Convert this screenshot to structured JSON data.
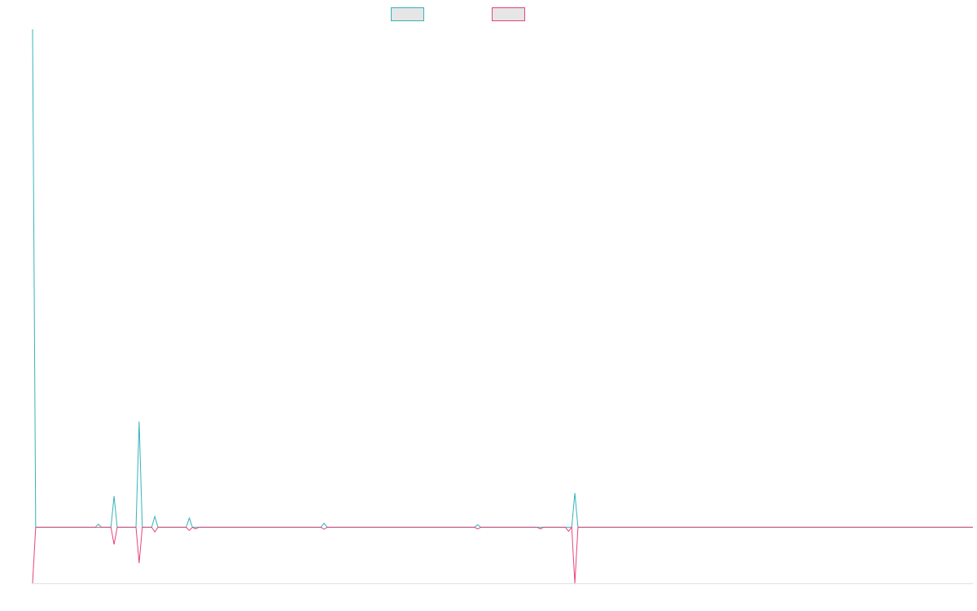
{
  "chart_data": {
    "type": "line",
    "title": "",
    "xlabel": "",
    "ylabel": "",
    "legend_placement": "top-center",
    "grid": false,
    "x": [
      0,
      1,
      2,
      3,
      4,
      5,
      6,
      7,
      8,
      9,
      10,
      11,
      12,
      13,
      14,
      15,
      16,
      17,
      18,
      19,
      20,
      21,
      22,
      23,
      24,
      25,
      26,
      27,
      28,
      29,
      30,
      31,
      32,
      33,
      34,
      35,
      36,
      37,
      38,
      39,
      40,
      41,
      42,
      43,
      44,
      45,
      46,
      47,
      48,
      49,
      50,
      51,
      52,
      53,
      54,
      55,
      56,
      57,
      58,
      59,
      60,
      61,
      62,
      63,
      64,
      65,
      66,
      67,
      68,
      69,
      70,
      71,
      72,
      73,
      74,
      75,
      76,
      77,
      78,
      79,
      80,
      81,
      82,
      83,
      84,
      85,
      86,
      87,
      88,
      89,
      90,
      91,
      92,
      93,
      94,
      95,
      96,
      97,
      98,
      99,
      100,
      101,
      102,
      103,
      104,
      105,
      106,
      107,
      108,
      109,
      110,
      111,
      112,
      113,
      114,
      115,
      116,
      117,
      118,
      119,
      120,
      121,
      122,
      123,
      124,
      125,
      126,
      127,
      128,
      129,
      130,
      131,
      132,
      133,
      134,
      135,
      136,
      137,
      138,
      139,
      140,
      141,
      142,
      143,
      144,
      145,
      146,
      147,
      148,
      149,
      150,
      151,
      152,
      153,
      154,
      155,
      156,
      157,
      158,
      159,
      160,
      161,
      162,
      163,
      164,
      165,
      166,
      167,
      168,
      169,
      170,
      171,
      172,
      173,
      174,
      175,
      176,
      177,
      178,
      179,
      180,
      181,
      182,
      183,
      184,
      185,
      186,
      187,
      188,
      189,
      190,
      191,
      192,
      193,
      194,
      195,
      196,
      197,
      198,
      199,
      200,
      201,
      202,
      203,
      204,
      205,
      206,
      207,
      208,
      209,
      210,
      211,
      212,
      213,
      214,
      215,
      216,
      217,
      218,
      219,
      220,
      221,
      222,
      223,
      224,
      225,
      226,
      227,
      228,
      229,
      230,
      231,
      232,
      233,
      234,
      235,
      236,
      237,
      238,
      239,
      240,
      241,
      242,
      243,
      244,
      245,
      246,
      247,
      248,
      249,
      250,
      251,
      252,
      253,
      254,
      255,
      256,
      257,
      258,
      259,
      260,
      261,
      262,
      263,
      264,
      265,
      266,
      267,
      268,
      269,
      270,
      271,
      272,
      273,
      274,
      275,
      276,
      277,
      278,
      279,
      280,
      281,
      282,
      283,
      284,
      285,
      286,
      287,
      288,
      289,
      290,
      291,
      292,
      293,
      294,
      295,
      296,
      297,
      298,
      299,
      300
    ],
    "ylim": [
      -18,
      160
    ],
    "series": [
      {
        "color": "#36b3b9",
        "points": [
          [
            0,
            160
          ],
          [
            1,
            0
          ],
          [
            20,
            0
          ],
          [
            21,
            1
          ],
          [
            22,
            0
          ],
          [
            25,
            0
          ],
          [
            26,
            10
          ],
          [
            27,
            0
          ],
          [
            30,
            0
          ],
          [
            31,
            0
          ],
          [
            33,
            0
          ],
          [
            34,
            34
          ],
          [
            35,
            0
          ],
          [
            38,
            0
          ],
          [
            39,
            3.5
          ],
          [
            40,
            0
          ],
          [
            49,
            0
          ],
          [
            50,
            3
          ],
          [
            51,
            0
          ],
          [
            52,
            0
          ],
          [
            53,
            0
          ],
          [
            74,
            0
          ],
          [
            75,
            0
          ],
          [
            76,
            0
          ],
          [
            92,
            0
          ],
          [
            93,
            1.3
          ],
          [
            94,
            0
          ],
          [
            114,
            0
          ],
          [
            115,
            0
          ],
          [
            116,
            0
          ],
          [
            141,
            0
          ],
          [
            142,
            0.8
          ],
          [
            143,
            0
          ],
          [
            161,
            0
          ],
          [
            162,
            0
          ],
          [
            163,
            0
          ],
          [
            170,
            0
          ],
          [
            171,
            0
          ],
          [
            172,
            0
          ],
          [
            173,
            11
          ],
          [
            174,
            0
          ],
          [
            300,
            0
          ]
        ]
      },
      {
        "color": "#e8437a",
        "points": [
          [
            0,
            -18
          ],
          [
            1,
            0
          ],
          [
            20,
            0
          ],
          [
            21,
            0
          ],
          [
            22,
            0
          ],
          [
            25,
            0
          ],
          [
            26,
            -5.5
          ],
          [
            27,
            0
          ],
          [
            30,
            0
          ],
          [
            31,
            0
          ],
          [
            33,
            0
          ],
          [
            34,
            -11.5
          ],
          [
            35,
            0
          ],
          [
            38,
            0
          ],
          [
            39,
            -1.5
          ],
          [
            40,
            0
          ],
          [
            49,
            0
          ],
          [
            50,
            -1
          ],
          [
            51,
            0
          ],
          [
            52,
            -0.5
          ],
          [
            53,
            0
          ],
          [
            74,
            0
          ],
          [
            75,
            0
          ],
          [
            76,
            0
          ],
          [
            92,
            0
          ],
          [
            93,
            -0.6
          ],
          [
            94,
            0
          ],
          [
            114,
            0
          ],
          [
            115,
            0
          ],
          [
            116,
            0
          ],
          [
            141,
            0
          ],
          [
            142,
            -0.5
          ],
          [
            143,
            0
          ],
          [
            161,
            0
          ],
          [
            162,
            -0.5
          ],
          [
            163,
            0
          ],
          [
            170,
            0
          ],
          [
            171,
            -1.3
          ],
          [
            172,
            0
          ],
          [
            173,
            -18
          ],
          [
            174,
            0
          ],
          [
            300,
            0
          ]
        ]
      }
    ]
  },
  "legend": {
    "items": [
      {
        "stroke": "#36b3b9",
        "fill": "#e6e6e6"
      },
      {
        "stroke": "#e8437a",
        "fill": "#e6e6e6"
      }
    ]
  }
}
